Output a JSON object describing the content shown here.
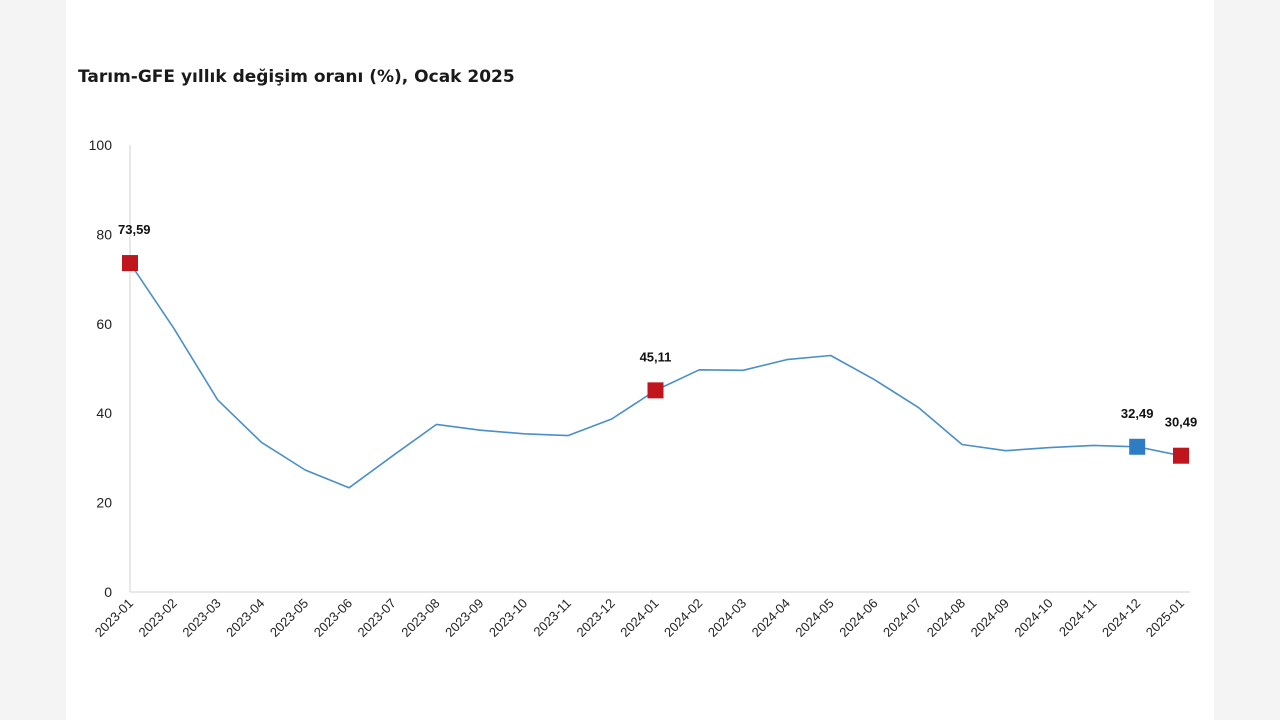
{
  "chart_data": {
    "type": "line",
    "title": "Tarım-GFE yıllık değişim oranı (%), Ocak 2025",
    "xlabel": "",
    "ylabel": "",
    "ylim": [
      0,
      100
    ],
    "yticks": [
      0,
      20,
      40,
      60,
      80,
      100
    ],
    "grid": false,
    "categories": [
      "2023-01",
      "2023-02",
      "2023-03",
      "2023-04",
      "2023-05",
      "2023-06",
      "2023-07",
      "2023-08",
      "2023-09",
      "2023-10",
      "2023-11",
      "2023-12",
      "2024-01",
      "2024-02",
      "2024-03",
      "2024-04",
      "2024-05",
      "2024-06",
      "2024-07",
      "2024-08",
      "2024-09",
      "2024-10",
      "2024-11",
      "2024-12",
      "2025-01"
    ],
    "series": [
      {
        "name": "Tarım-GFE",
        "color": "#4a8fc7",
        "values": [
          73.59,
          59.0,
          43.0,
          33.5,
          27.3,
          23.3,
          30.5,
          37.5,
          36.2,
          35.4,
          35.0,
          38.7,
          45.11,
          49.7,
          49.6,
          52.0,
          52.9,
          47.5,
          41.3,
          33.0,
          31.6,
          32.3,
          32.8,
          32.49,
          30.49
        ]
      }
    ],
    "highlights": [
      {
        "index": 0,
        "label": "73,59",
        "color": "#c0151c"
      },
      {
        "index": 12,
        "label": "45,11",
        "color": "#c0151c"
      },
      {
        "index": 23,
        "label": "32,49",
        "color": "#2e7cc4"
      },
      {
        "index": 24,
        "label": "30,49",
        "color": "#c0151c"
      }
    ]
  }
}
